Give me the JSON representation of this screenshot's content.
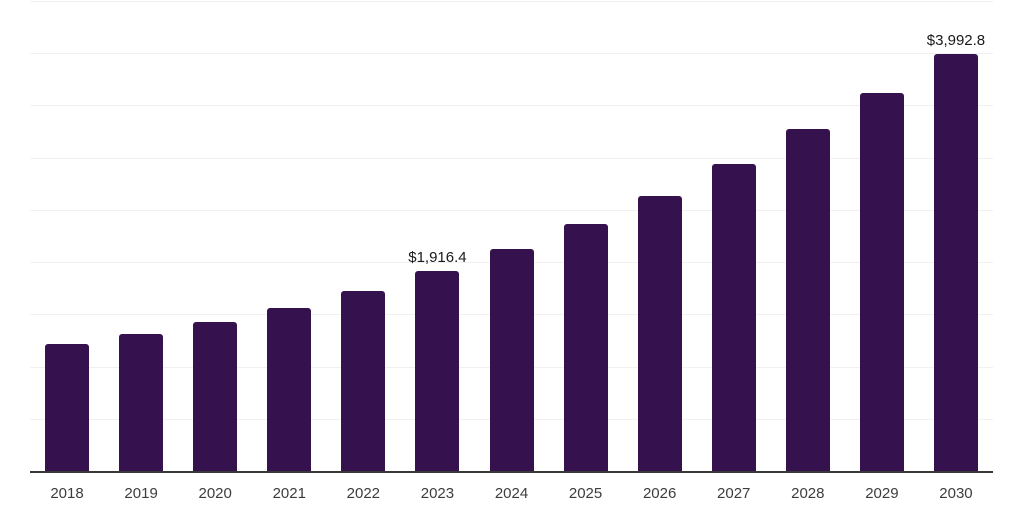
{
  "chart_data": {
    "type": "bar",
    "title": "",
    "xlabel": "",
    "ylabel": "",
    "categories": [
      "2018",
      "2019",
      "2020",
      "2021",
      "2022",
      "2023",
      "2024",
      "2025",
      "2026",
      "2027",
      "2028",
      "2029",
      "2030"
    ],
    "values": [
      1220,
      1315,
      1430,
      1565,
      1725,
      1916.4,
      2125,
      2365,
      2630,
      2935,
      3275,
      3620,
      3992.8
    ],
    "data_labels": [
      {
        "category": "2023",
        "text": "$1,916.4"
      },
      {
        "category": "2030",
        "text": "$3,992.8"
      }
    ],
    "ylim": [
      0,
      4500
    ],
    "gridline_step": 500,
    "grid": "horizontal-only",
    "y_tick_labels": "none",
    "legend": "none",
    "colors": {
      "bar": "#35124E",
      "axis_line": "#383838",
      "gridline": "#F0F0F1",
      "tick_label": "#3D3D3D",
      "data_label": "#191919",
      "background": "#FFFFFF"
    }
  }
}
